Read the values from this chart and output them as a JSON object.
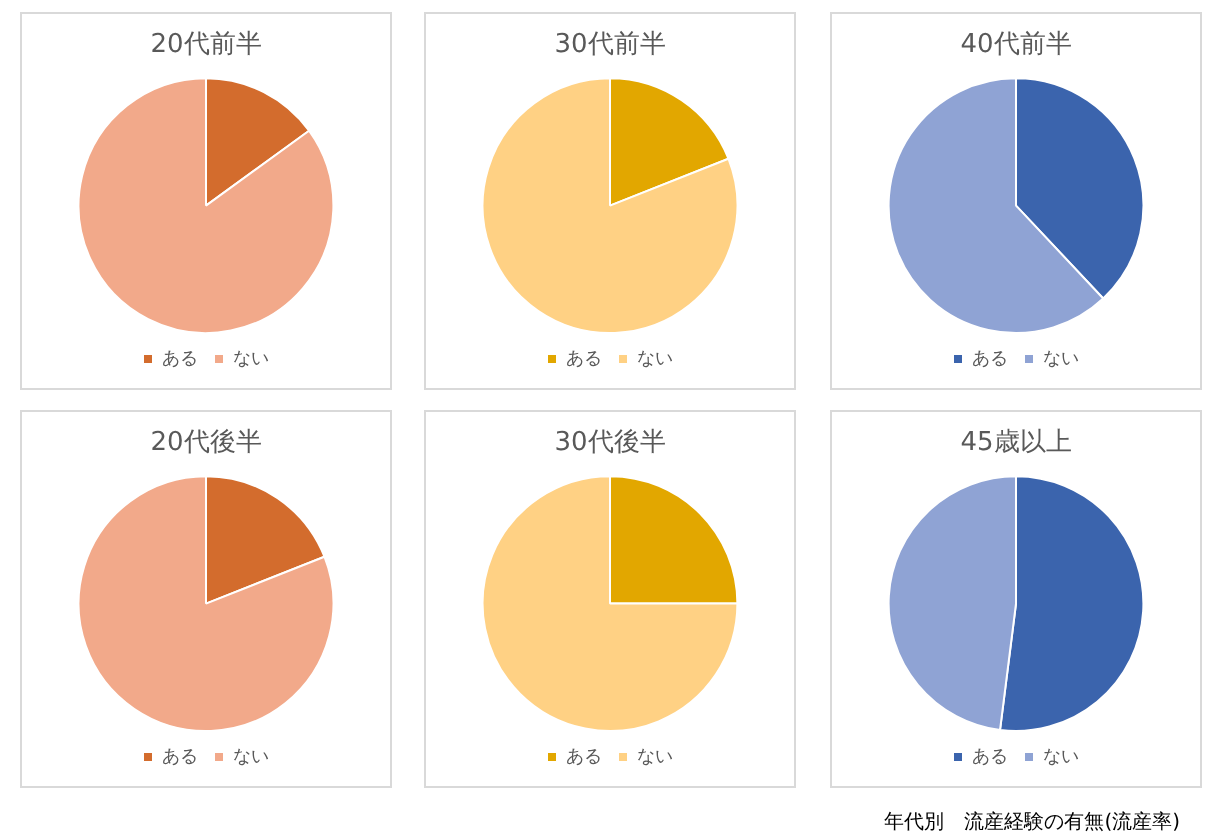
{
  "chart_data": [
    {
      "type": "pie",
      "title": "20代前半",
      "categories": [
        "ある",
        "ない"
      ],
      "values": [
        15,
        85
      ],
      "colors": [
        "#d36c2d",
        "#f2a98a"
      ],
      "legend": "bottom"
    },
    {
      "type": "pie",
      "title": "30代前半",
      "categories": [
        "ある",
        "ない"
      ],
      "values": [
        19,
        81
      ],
      "colors": [
        "#e2a700",
        "#ffd184"
      ],
      "legend": "bottom"
    },
    {
      "type": "pie",
      "title": "40代前半",
      "categories": [
        "ある",
        "ない"
      ],
      "values": [
        38,
        62
      ],
      "colors": [
        "#3b64ad",
        "#8fa3d4"
      ],
      "legend": "bottom"
    },
    {
      "type": "pie",
      "title": "20代後半",
      "categories": [
        "ある",
        "ない"
      ],
      "values": [
        19,
        81
      ],
      "colors": [
        "#d36c2d",
        "#f2a98a"
      ],
      "legend": "bottom"
    },
    {
      "type": "pie",
      "title": "30代後半",
      "categories": [
        "ある",
        "ない"
      ],
      "values": [
        25,
        75
      ],
      "colors": [
        "#e2a700",
        "#ffd184"
      ],
      "legend": "bottom"
    },
    {
      "type": "pie",
      "title": "45歳以上",
      "categories": [
        "ある",
        "ない"
      ],
      "values": [
        52,
        48
      ],
      "colors": [
        "#3b64ad",
        "#8fa3d4"
      ],
      "legend": "bottom",
      "annotations": [
        "年代別　流産経験の有無(流産率)"
      ]
    }
  ]
}
